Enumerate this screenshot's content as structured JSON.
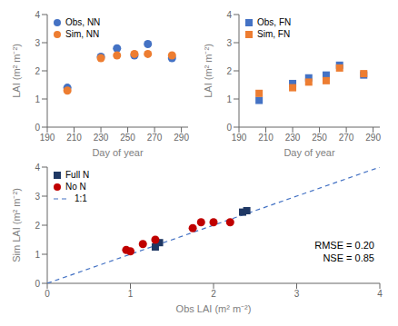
{
  "chart_data": [
    {
      "type": "scatter",
      "xlabel": "Day of year",
      "ylabel": "LAI (m² m⁻²)",
      "legend": "upper left",
      "grid": false,
      "xlim": [
        190,
        295
      ],
      "ylim": [
        0,
        4
      ],
      "xticks": [
        190,
        210,
        230,
        250,
        270,
        290
      ],
      "yticks": [
        0,
        1,
        2,
        3,
        4
      ],
      "series": [
        {
          "name": "Obs, NN",
          "color": "#4472C4",
          "marker": "circle",
          "x": [
            205,
            230,
            242,
            255,
            265,
            283
          ],
          "values": [
            1.4,
            2.5,
            2.8,
            2.55,
            2.95,
            2.45
          ]
        },
        {
          "name": "Sim, NN",
          "color": "#ED7D31",
          "marker": "circle",
          "x": [
            205,
            230,
            242,
            255,
            265,
            283
          ],
          "values": [
            1.3,
            2.45,
            2.55,
            2.6,
            2.6,
            2.55
          ]
        }
      ]
    },
    {
      "type": "scatter",
      "xlabel": "Day of year",
      "ylabel": "LAI (m² m⁻²)",
      "legend": "upper left",
      "grid": false,
      "xlim": [
        190,
        295
      ],
      "ylim": [
        0,
        4
      ],
      "xticks": [
        190,
        210,
        230,
        250,
        270,
        290
      ],
      "yticks": [
        0,
        1,
        2,
        3,
        4
      ],
      "series": [
        {
          "name": "Obs, FN",
          "color": "#4472C4",
          "marker": "square",
          "x": [
            205,
            230,
            242,
            255,
            265,
            283
          ],
          "values": [
            0.95,
            1.55,
            1.75,
            1.85,
            2.2,
            1.85
          ]
        },
        {
          "name": "Sim, FN",
          "color": "#ED7D31",
          "marker": "square",
          "x": [
            205,
            230,
            242,
            255,
            265,
            283
          ],
          "values": [
            1.2,
            1.4,
            1.6,
            1.65,
            2.1,
            1.9
          ]
        }
      ]
    },
    {
      "type": "scatter",
      "xlabel": "Obs LAI (m² m⁻²)",
      "ylabel": "Sim LAI (m² m⁻²)",
      "legend": "upper left",
      "grid": false,
      "xlim": [
        0,
        4
      ],
      "ylim": [
        0,
        4
      ],
      "xticks": [
        0,
        1,
        2,
        3,
        4
      ],
      "yticks": [
        0,
        1,
        2,
        3,
        4
      ],
      "annotations": [
        "RMSE = 0.20\nNSE = 0.85"
      ],
      "series": [
        {
          "name": "Full N",
          "color": "#1F3864",
          "marker": "square",
          "x": [
            1.3,
            1.35,
            2.35,
            2.4
          ],
          "values": [
            1.25,
            1.4,
            2.45,
            2.5
          ]
        },
        {
          "name": "No N",
          "color": "#C00000",
          "marker": "circle",
          "x": [
            0.95,
            1.0,
            1.15,
            1.3,
            1.75,
            1.85,
            2.0,
            2.2
          ],
          "values": [
            1.15,
            1.1,
            1.35,
            1.5,
            1.9,
            2.1,
            2.1,
            2.1
          ]
        },
        {
          "name": "1:1",
          "type": "line",
          "line_style": "dashed",
          "color": "#4472C4",
          "x": [
            0,
            4
          ],
          "values": [
            0,
            4
          ]
        }
      ]
    }
  ]
}
